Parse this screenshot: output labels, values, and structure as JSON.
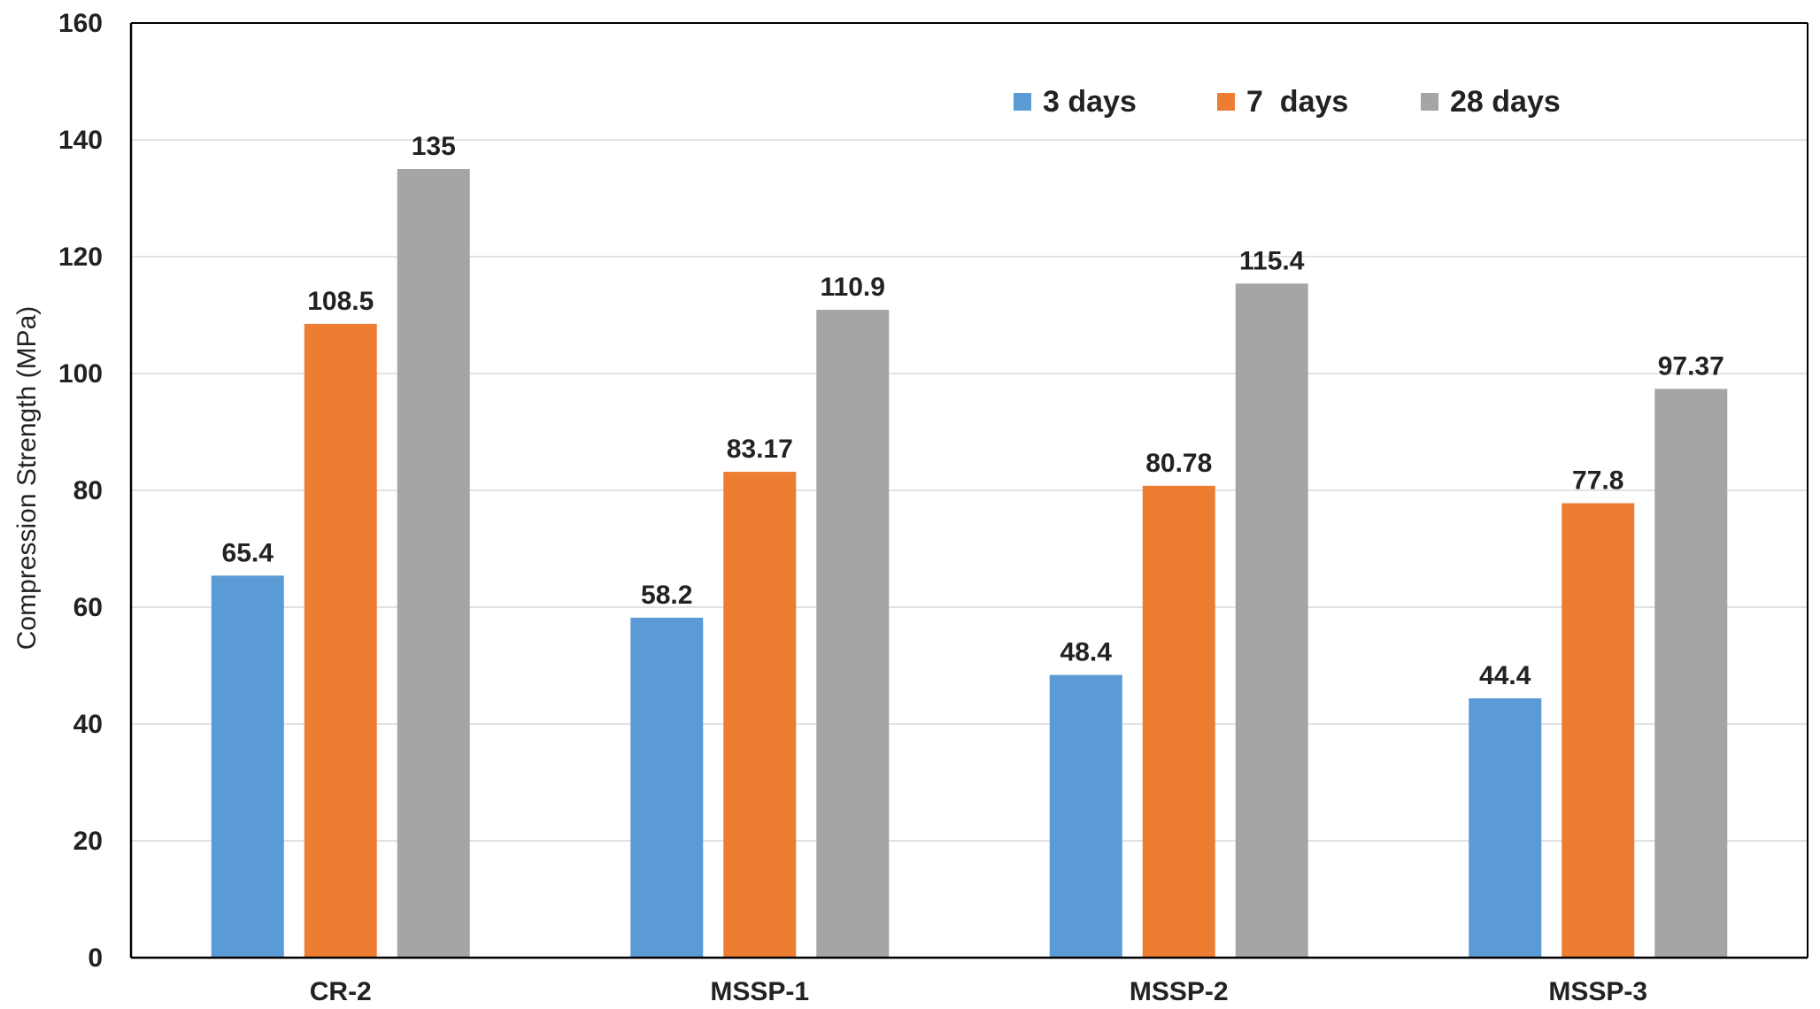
{
  "chart_data": {
    "type": "bar",
    "title": "",
    "xlabel": "",
    "ylabel": "Compression Strength (MPa)",
    "ylim": [
      0,
      160
    ],
    "yticks": [
      0,
      20,
      40,
      60,
      80,
      100,
      120,
      140,
      160
    ],
    "grid": true,
    "legend_position": "top-right",
    "categories": [
      "CR-2",
      "MSSP-1",
      "MSSP-2",
      "MSSP-3"
    ],
    "series": [
      {
        "name": "3 days",
        "color": "#5B9BD5",
        "values": [
          65.4,
          58.2,
          48.4,
          44.4
        ],
        "labels": [
          "65.4",
          "58.2",
          "48.4",
          "44.4"
        ]
      },
      {
        "name": "7  days",
        "color": "#ED7D31",
        "values": [
          108.5,
          83.17,
          80.78,
          77.8
        ],
        "labels": [
          "108.5",
          "83.17",
          "80.78",
          "77.8"
        ]
      },
      {
        "name": "28 days",
        "color": "#A5A5A5",
        "values": [
          135,
          110.9,
          115.4,
          97.37
        ],
        "labels": [
          "135",
          "110.9",
          "115.4",
          "97.37"
        ]
      }
    ]
  }
}
